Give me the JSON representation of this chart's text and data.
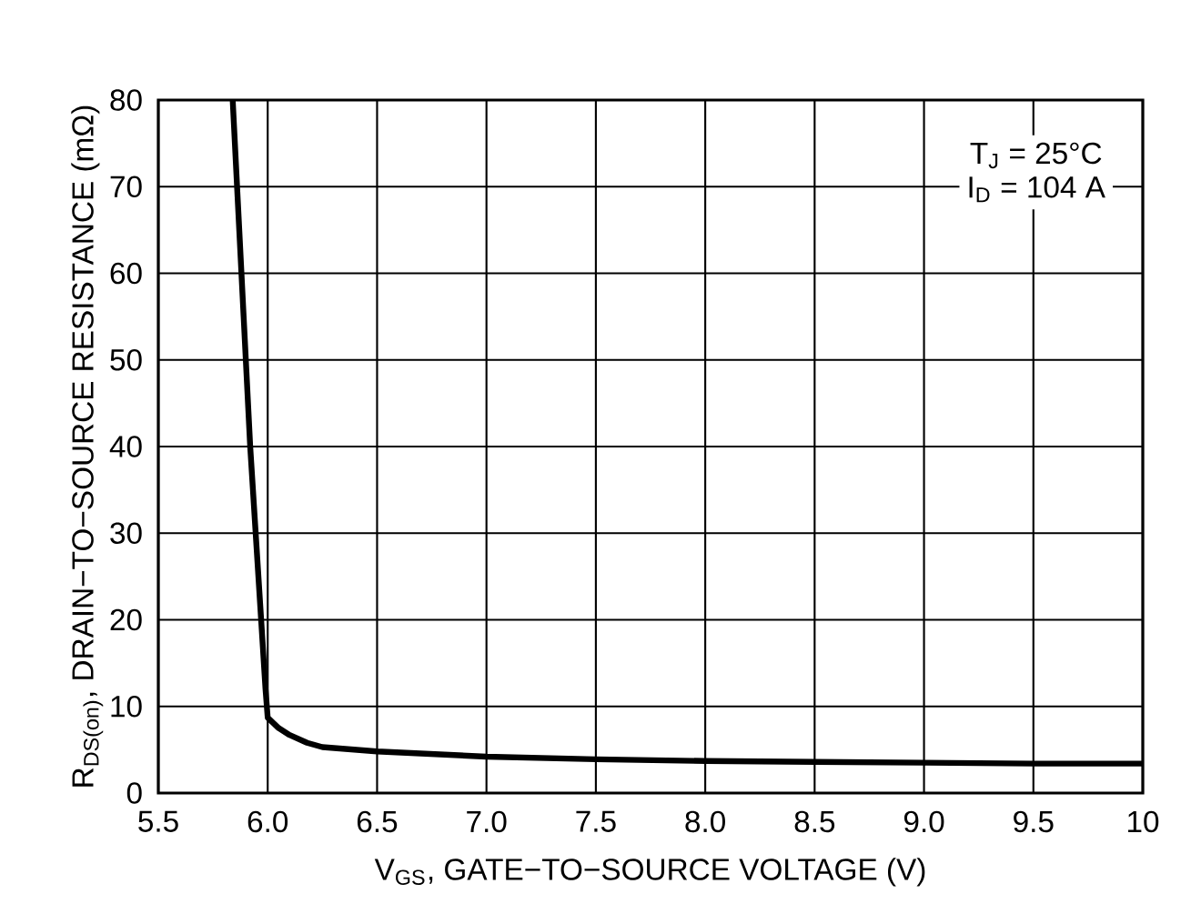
{
  "chart_data": {
    "type": "line",
    "xlabel": "V$_{GS}$, GATE−TO−SOURCE VOLTAGE (V)",
    "ylabel": "R$_{DS(on)}$, DRAIN−TO−SOURCE RESISTANCE (mΩ)",
    "annotations": [
      "T$_{J}$ = 25°C",
      "I$_{D}$ = 104 A"
    ],
    "x": [
      5.84,
      5.86,
      5.89,
      5.92,
      5.95,
      5.97,
      5.99,
      6.0,
      6.05,
      6.1,
      6.18,
      6.25,
      6.5,
      7.0,
      7.5,
      8.0,
      8.5,
      9.0,
      9.5,
      10.0
    ],
    "series": [
      {
        "color": "#000000",
        "values": [
          80,
          70,
          55,
          40,
          28,
          20,
          12,
          8.7,
          7.5,
          6.7,
          5.8,
          5.3,
          4.8,
          4.2,
          3.9,
          3.7,
          3.6,
          3.5,
          3.4,
          3.4
        ]
      }
    ],
    "xlim": [
      5.5,
      10
    ],
    "ylim": [
      0,
      80
    ],
    "xticks": [
      {
        "value": 5.5,
        "label": "5.5"
      },
      {
        "value": 6,
        "label": "6.0"
      },
      {
        "value": 6.5,
        "label": "6.5"
      },
      {
        "value": 7,
        "label": "7.0"
      },
      {
        "value": 7.5,
        "label": "7.5"
      },
      {
        "value": 8,
        "label": "8.0"
      },
      {
        "value": 8.5,
        "label": "8.5"
      },
      {
        "value": 9,
        "label": "9.0"
      },
      {
        "value": 9.5,
        "label": "9.5"
      },
      {
        "value": 10,
        "label": "10"
      }
    ],
    "yticks": [
      0,
      10,
      20,
      30,
      40,
      50,
      60,
      70,
      80
    ],
    "grid": true,
    "marker": "none",
    "line_style": "solid"
  }
}
